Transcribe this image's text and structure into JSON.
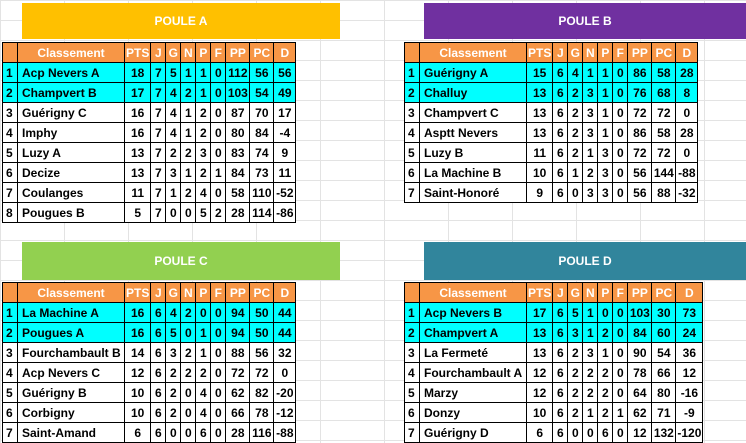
{
  "headers": [
    "Classement",
    "PTS",
    "J",
    "G",
    "N",
    "P",
    "F",
    "PP",
    "PC",
    "D"
  ],
  "pools": [
    {
      "title": "POULE A",
      "color": "#ffc000",
      "rows": [
        {
          "rank": "1",
          "team": "Acp Nevers A",
          "pts": "18",
          "j": "7",
          "g": "5",
          "n": "1",
          "p": "1",
          "f": "0",
          "pp": "112",
          "pc": "56",
          "d": "56",
          "hl": true
        },
        {
          "rank": "2",
          "team": "Champvert B",
          "pts": "17",
          "j": "7",
          "g": "4",
          "n": "2",
          "p": "1",
          "f": "0",
          "pp": "103",
          "pc": "54",
          "d": "49",
          "hl": true
        },
        {
          "rank": "3",
          "team": "Guérigny C",
          "pts": "16",
          "j": "7",
          "g": "4",
          "n": "1",
          "p": "2",
          "f": "0",
          "pp": "87",
          "pc": "70",
          "d": "17",
          "hl": false
        },
        {
          "rank": "4",
          "team": "Imphy",
          "pts": "16",
          "j": "7",
          "g": "4",
          "n": "1",
          "p": "2",
          "f": "0",
          "pp": "80",
          "pc": "84",
          "d": "-4",
          "hl": false
        },
        {
          "rank": "5",
          "team": "Luzy A",
          "pts": "13",
          "j": "7",
          "g": "2",
          "n": "2",
          "p": "3",
          "f": "0",
          "pp": "83",
          "pc": "74",
          "d": "9",
          "hl": false
        },
        {
          "rank": "6",
          "team": "Decize",
          "pts": "13",
          "j": "7",
          "g": "3",
          "n": "1",
          "p": "2",
          "f": "1",
          "pp": "84",
          "pc": "73",
          "d": "11",
          "hl": false
        },
        {
          "rank": "7",
          "team": "Coulanges",
          "pts": "11",
          "j": "7",
          "g": "1",
          "n": "2",
          "p": "4",
          "f": "0",
          "pp": "58",
          "pc": "110",
          "d": "-52",
          "hl": false
        },
        {
          "rank": "8",
          "team": "Pougues B",
          "pts": "5",
          "j": "7",
          "g": "0",
          "n": "0",
          "p": "5",
          "f": "2",
          "pp": "28",
          "pc": "114",
          "d": "-86",
          "hl": false
        }
      ]
    },
    {
      "title": "POULE B",
      "color": "#7030a0",
      "rows": [
        {
          "rank": "1",
          "team": "Guérigny A",
          "pts": "15",
          "j": "6",
          "g": "4",
          "n": "1",
          "p": "1",
          "f": "0",
          "pp": "86",
          "pc": "58",
          "d": "28",
          "hl": true
        },
        {
          "rank": "2",
          "team": "Challuy",
          "pts": "13",
          "j": "6",
          "g": "2",
          "n": "3",
          "p": "1",
          "f": "0",
          "pp": "76",
          "pc": "68",
          "d": "8",
          "hl": true
        },
        {
          "rank": "3",
          "team": "Champvert C",
          "pts": "13",
          "j": "6",
          "g": "2",
          "n": "3",
          "p": "1",
          "f": "0",
          "pp": "72",
          "pc": "72",
          "d": "0",
          "hl": false
        },
        {
          "rank": "4",
          "team": "Asptt Nevers",
          "pts": "13",
          "j": "6",
          "g": "2",
          "n": "3",
          "p": "1",
          "f": "0",
          "pp": "86",
          "pc": "58",
          "d": "28",
          "hl": false
        },
        {
          "rank": "5",
          "team": "Luzy B",
          "pts": "11",
          "j": "6",
          "g": "2",
          "n": "1",
          "p": "3",
          "f": "0",
          "pp": "72",
          "pc": "72",
          "d": "0",
          "hl": false
        },
        {
          "rank": "6",
          "team": "La Machine B",
          "pts": "10",
          "j": "6",
          "g": "1",
          "n": "2",
          "p": "3",
          "f": "0",
          "pp": "56",
          "pc": "144",
          "d": "-88",
          "hl": false
        },
        {
          "rank": "7",
          "team": "Saint-Honoré",
          "pts": "9",
          "j": "6",
          "g": "0",
          "n": "3",
          "p": "3",
          "f": "0",
          "pp": "56",
          "pc": "88",
          "d": "-32",
          "hl": false
        }
      ]
    },
    {
      "title": "POULE C",
      "color": "#92d050",
      "rows": [
        {
          "rank": "1",
          "team": "La Machine A",
          "pts": "16",
          "j": "6",
          "g": "4",
          "n": "2",
          "p": "0",
          "f": "0",
          "pp": "94",
          "pc": "50",
          "d": "44",
          "hl": true
        },
        {
          "rank": "2",
          "team": "Pougues A",
          "pts": "16",
          "j": "6",
          "g": "5",
          "n": "0",
          "p": "1",
          "f": "0",
          "pp": "94",
          "pc": "50",
          "d": "44",
          "hl": true
        },
        {
          "rank": "3",
          "team": "Fourchambault B",
          "pts": "14",
          "j": "6",
          "g": "3",
          "n": "2",
          "p": "1",
          "f": "0",
          "pp": "88",
          "pc": "56",
          "d": "32",
          "hl": false
        },
        {
          "rank": "4",
          "team": "Acp Nevers C",
          "pts": "12",
          "j": "6",
          "g": "2",
          "n": "2",
          "p": "2",
          "f": "0",
          "pp": "72",
          "pc": "72",
          "d": "0",
          "hl": false
        },
        {
          "rank": "5",
          "team": "Guérigny B",
          "pts": "10",
          "j": "6",
          "g": "2",
          "n": "0",
          "p": "4",
          "f": "0",
          "pp": "62",
          "pc": "82",
          "d": "-20",
          "hl": false
        },
        {
          "rank": "6",
          "team": "Corbigny",
          "pts": "10",
          "j": "6",
          "g": "2",
          "n": "0",
          "p": "4",
          "f": "0",
          "pp": "66",
          "pc": "78",
          "d": "-12",
          "hl": false
        },
        {
          "rank": "7",
          "team": "Saint-Amand",
          "pts": "6",
          "j": "6",
          "g": "0",
          "n": "0",
          "p": "6",
          "f": "0",
          "pp": "28",
          "pc": "116",
          "d": "-88",
          "hl": false
        }
      ]
    },
    {
      "title": "POULE D",
      "color": "#31859c",
      "rows": [
        {
          "rank": "1",
          "team": "Acp Nevers B",
          "pts": "17",
          "j": "6",
          "g": "5",
          "n": "1",
          "p": "0",
          "f": "0",
          "pp": "103",
          "pc": "30",
          "d": "73",
          "hl": true
        },
        {
          "rank": "2",
          "team": "Champvert A",
          "pts": "13",
          "j": "6",
          "g": "3",
          "n": "1",
          "p": "2",
          "f": "0",
          "pp": "84",
          "pc": "60",
          "d": "24",
          "hl": true
        },
        {
          "rank": "3",
          "team": "La Fermeté",
          "pts": "13",
          "j": "6",
          "g": "2",
          "n": "3",
          "p": "1",
          "f": "0",
          "pp": "90",
          "pc": "54",
          "d": "36",
          "hl": false
        },
        {
          "rank": "4",
          "team": "Fourchambault A",
          "pts": "12",
          "j": "6",
          "g": "2",
          "n": "2",
          "p": "2",
          "f": "0",
          "pp": "78",
          "pc": "66",
          "d": "12",
          "hl": false
        },
        {
          "rank": "5",
          "team": "Marzy",
          "pts": "12",
          "j": "6",
          "g": "2",
          "n": "2",
          "p": "2",
          "f": "0",
          "pp": "64",
          "pc": "80",
          "d": "-16",
          "hl": false
        },
        {
          "rank": "6",
          "team": "Donzy",
          "pts": "10",
          "j": "6",
          "g": "2",
          "n": "1",
          "p": "2",
          "f": "1",
          "pp": "62",
          "pc": "71",
          "d": "-9",
          "hl": false
        },
        {
          "rank": "7",
          "team": "Guérigny D",
          "pts": "6",
          "j": "6",
          "g": "0",
          "n": "0",
          "p": "6",
          "f": "0",
          "pp": "12",
          "pc": "132",
          "d": "-120",
          "hl": false
        }
      ]
    }
  ]
}
